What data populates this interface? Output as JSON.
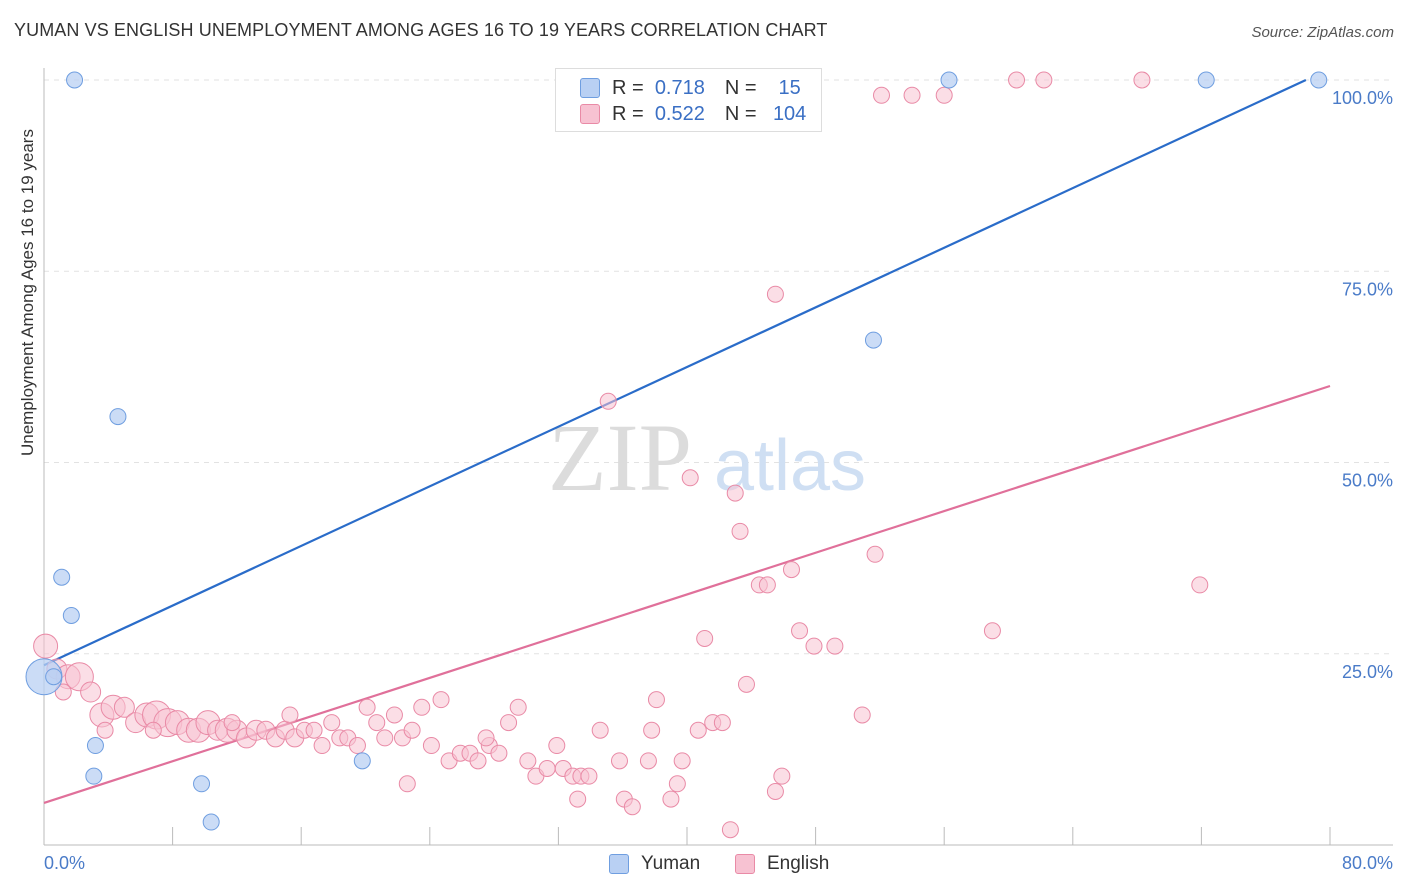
{
  "header": {
    "title": "YUMAN VS ENGLISH UNEMPLOYMENT AMONG AGES 16 TO 19 YEARS CORRELATION CHART",
    "source": "Source: ZipAtlas.com"
  },
  "legend": {
    "r_label": "R =",
    "n_label": "N =",
    "yuman": {
      "r": "0.718",
      "n": "15"
    },
    "english": {
      "r": "0.522",
      "n": "104"
    }
  },
  "watermark": {
    "zip": "ZIP",
    "atlas": "atlas"
  },
  "chart_data": {
    "type": "scatter",
    "title": "YUMAN VS ENGLISH UNEMPLOYMENT AMONG AGES 16 TO 19 YEARS CORRELATION CHART",
    "xlabel": "",
    "ylabel": "Unemployment Among Ages 16 to 19 years",
    "xlim": [
      0,
      80
    ],
    "ylim": [
      0,
      100
    ],
    "x_tick_labels": [
      "0.0%",
      "80.0%"
    ],
    "y_tick_labels": [
      "25.0%",
      "50.0%",
      "75.0%",
      "100.0%"
    ],
    "y_ticks": [
      25,
      50,
      75,
      100
    ],
    "grid": true,
    "legend_position": "top-center",
    "colors": {
      "yuman": "#6f9ee0",
      "yuman_fill": "#b9d0f3",
      "yuman_line": "#2a6cc9",
      "english": "#e98aa6",
      "english_fill": "#f7c2d2",
      "english_line": "#e0709a",
      "axis_text": "#4a7bc8"
    },
    "series": [
      {
        "name": "Yuman",
        "points": [
          [
            0.0,
            22,
            18
          ],
          [
            0.6,
            22,
            8
          ],
          [
            1.1,
            35,
            8
          ],
          [
            1.7,
            30,
            8
          ],
          [
            1.9,
            100,
            8
          ],
          [
            3.2,
            13,
            8
          ],
          [
            3.1,
            9,
            8
          ],
          [
            4.6,
            56,
            8
          ],
          [
            9.8,
            8,
            8
          ],
          [
            10.4,
            3,
            8
          ],
          [
            19.8,
            11,
            8
          ],
          [
            51.6,
            66,
            8
          ],
          [
            56.3,
            100,
            8
          ],
          [
            72.3,
            100,
            8
          ],
          [
            79.3,
            100,
            8
          ]
        ],
        "trend": {
          "x": [
            0.0,
            78.5
          ],
          "y": [
            23.5,
            100
          ]
        }
      },
      {
        "name": "English",
        "points": [
          [
            0.1,
            26,
            12
          ],
          [
            0.8,
            23,
            10
          ],
          [
            1.5,
            22,
            12
          ],
          [
            2.2,
            22,
            14
          ],
          [
            2.9,
            20,
            10
          ],
          [
            3.6,
            17,
            12
          ],
          [
            4.3,
            18,
            12
          ],
          [
            5.0,
            18,
            10
          ],
          [
            5.7,
            16,
            10
          ],
          [
            6.4,
            17,
            12
          ],
          [
            7.0,
            17,
            14
          ],
          [
            7.7,
            16,
            14
          ],
          [
            8.3,
            16,
            12
          ],
          [
            9.0,
            15,
            12
          ],
          [
            9.6,
            15,
            12
          ],
          [
            10.2,
            16,
            12
          ],
          [
            10.8,
            15,
            10
          ],
          [
            11.4,
            15,
            12
          ],
          [
            12.0,
            15,
            10
          ],
          [
            12.6,
            14,
            10
          ],
          [
            13.2,
            15,
            10
          ],
          [
            13.8,
            15,
            9
          ],
          [
            14.4,
            14,
            9
          ],
          [
            15.0,
            15,
            9
          ],
          [
            15.6,
            14,
            9
          ],
          [
            16.2,
            15,
            8
          ],
          [
            16.8,
            15,
            8
          ],
          [
            17.3,
            13,
            8
          ],
          [
            17.9,
            16,
            8
          ],
          [
            18.4,
            14,
            8
          ],
          [
            18.9,
            14,
            8
          ],
          [
            19.5,
            13,
            8
          ],
          [
            20.1,
            18,
            8
          ],
          [
            20.7,
            16,
            8
          ],
          [
            21.2,
            14,
            8
          ],
          [
            21.8,
            17,
            8
          ],
          [
            22.3,
            14,
            8
          ],
          [
            22.9,
            15,
            8
          ],
          [
            23.5,
            18,
            8
          ],
          [
            24.1,
            13,
            8
          ],
          [
            24.7,
            19,
            8
          ],
          [
            25.2,
            11,
            8
          ],
          [
            25.9,
            12,
            8
          ],
          [
            26.5,
            12,
            8
          ],
          [
            27.0,
            11,
            8
          ],
          [
            27.7,
            13,
            8
          ],
          [
            28.3,
            12,
            8
          ],
          [
            28.9,
            16,
            8
          ],
          [
            29.5,
            18,
            8
          ],
          [
            30.1,
            11,
            8
          ],
          [
            30.6,
            9,
            8
          ],
          [
            31.3,
            10,
            8
          ],
          [
            31.9,
            13,
            8
          ],
          [
            32.3,
            10,
            8
          ],
          [
            32.9,
            9,
            8
          ],
          [
            33.4,
            9,
            8
          ],
          [
            33.9,
            9,
            8
          ],
          [
            34.6,
            15,
            8
          ],
          [
            35.8,
            11,
            8
          ],
          [
            36.1,
            6,
            8
          ],
          [
            36.6,
            5,
            8
          ],
          [
            37.6,
            11,
            8
          ],
          [
            37.8,
            15,
            8
          ],
          [
            38.1,
            19,
            8
          ],
          [
            39.0,
            6,
            8
          ],
          [
            39.4,
            8,
            8
          ],
          [
            40.2,
            48,
            8
          ],
          [
            40.7,
            15,
            8
          ],
          [
            41.1,
            27,
            8
          ],
          [
            41.6,
            16,
            8
          ],
          [
            42.2,
            16,
            8
          ],
          [
            42.7,
            2,
            8
          ],
          [
            43.0,
            46,
            8
          ],
          [
            43.3,
            41,
            8
          ],
          [
            43.7,
            21,
            8
          ],
          [
            44.5,
            34,
            8
          ],
          [
            45.0,
            34,
            8
          ],
          [
            45.5,
            7,
            8
          ],
          [
            45.9,
            9,
            8
          ],
          [
            46.5,
            36,
            8
          ],
          [
            47.0,
            28,
            8
          ],
          [
            47.9,
            26,
            8
          ],
          [
            49.2,
            26,
            8
          ],
          [
            50.9,
            17,
            8
          ],
          [
            51.7,
            38,
            8
          ],
          [
            52.1,
            98,
            8
          ],
          [
            54.0,
            98,
            8
          ],
          [
            56.0,
            98,
            8
          ],
          [
            59.0,
            28,
            8
          ],
          [
            60.5,
            100,
            8
          ],
          [
            62.2,
            100,
            8
          ],
          [
            68.3,
            100,
            8
          ],
          [
            71.9,
            34,
            8
          ],
          [
            35.1,
            58,
            8
          ],
          [
            45.5,
            72,
            8
          ],
          [
            27.5,
            14,
            8
          ],
          [
            11.7,
            16,
            8
          ],
          [
            6.8,
            15,
            8
          ],
          [
            3.8,
            15,
            8
          ],
          [
            1.2,
            20,
            8
          ],
          [
            22.6,
            8,
            8
          ],
          [
            15.3,
            17,
            8
          ],
          [
            33.2,
            6,
            8
          ],
          [
            39.7,
            11,
            8
          ]
        ],
        "trend": {
          "x": [
            0.0,
            80.0
          ],
          "y": [
            5.5,
            60
          ]
        }
      }
    ]
  },
  "bottom_legend": {
    "yuman": "Yuman",
    "english": "English"
  }
}
